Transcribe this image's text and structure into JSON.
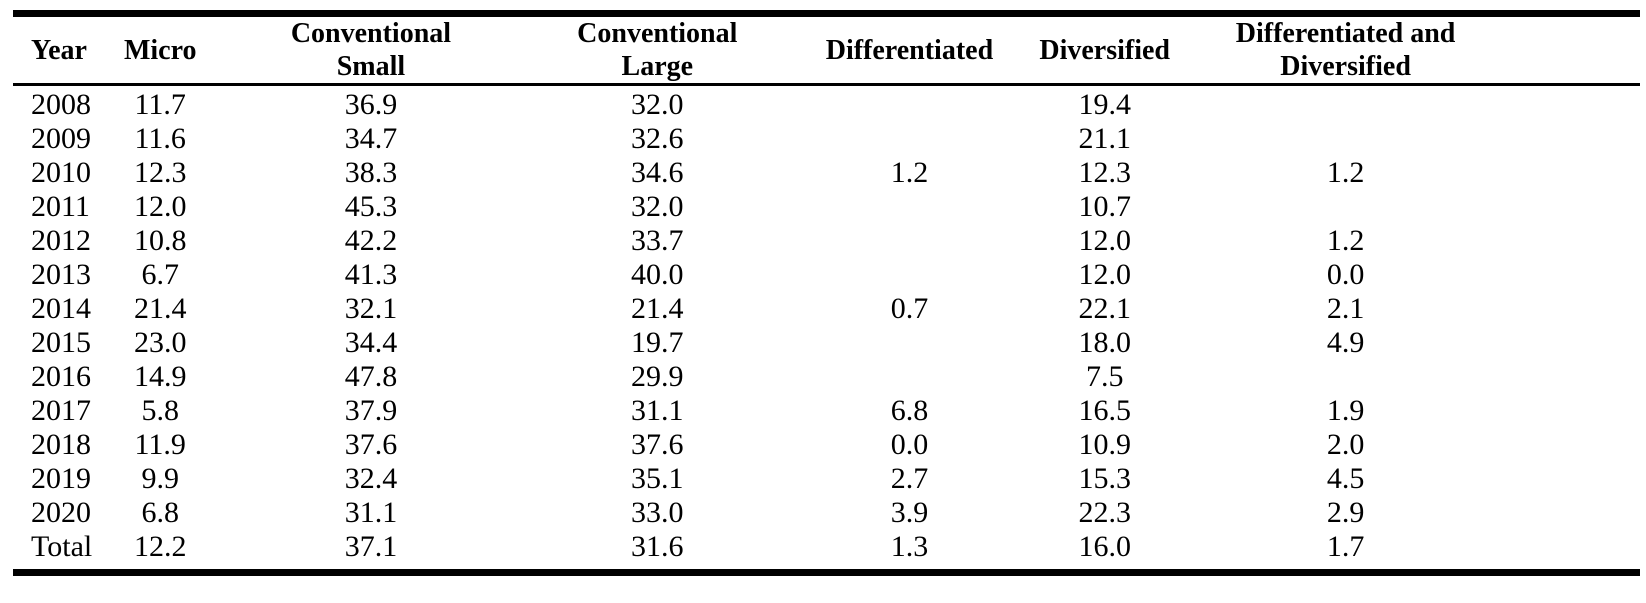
{
  "table": {
    "headers": [
      "Year",
      "Micro",
      "Conventional Small",
      "Conventional Large",
      "Differentiated",
      "Diversified",
      "Differentiated and Diversified"
    ],
    "rows": [
      [
        "2008",
        "11.7",
        "36.9",
        "32.0",
        "",
        "19.4",
        ""
      ],
      [
        "2009",
        "11.6",
        "34.7",
        "32.6",
        "",
        "21.1",
        ""
      ],
      [
        "2010",
        "12.3",
        "38.3",
        "34.6",
        "1.2",
        "12.3",
        "1.2"
      ],
      [
        "2011",
        "12.0",
        "45.3",
        "32.0",
        "",
        "10.7",
        ""
      ],
      [
        "2012",
        "10.8",
        "42.2",
        "33.7",
        "",
        "12.0",
        "1.2"
      ],
      [
        "2013",
        "6.7",
        "41.3",
        "40.0",
        "",
        "12.0",
        "0.0"
      ],
      [
        "2014",
        "21.4",
        "32.1",
        "21.4",
        "0.7",
        "22.1",
        "2.1"
      ],
      [
        "2015",
        "23.0",
        "34.4",
        "19.7",
        "",
        "18.0",
        "4.9"
      ],
      [
        "2016",
        "14.9",
        "47.8",
        "29.9",
        "",
        "7.5",
        ""
      ],
      [
        "2017",
        "5.8",
        "37.9",
        "31.1",
        "6.8",
        "16.5",
        "1.9"
      ],
      [
        "2018",
        "11.9",
        "37.6",
        "37.6",
        "0.0",
        "10.9",
        "2.0"
      ],
      [
        "2019",
        "9.9",
        "32.4",
        "35.1",
        "2.7",
        "15.3",
        "4.5"
      ],
      [
        "2020",
        "6.8",
        "31.1",
        "33.0",
        "3.9",
        "22.3",
        "2.9"
      ],
      [
        "Total",
        "12.2",
        "37.1",
        "31.6",
        "1.3",
        "16.0",
        "1.7"
      ]
    ],
    "line_color": "#000000"
  }
}
